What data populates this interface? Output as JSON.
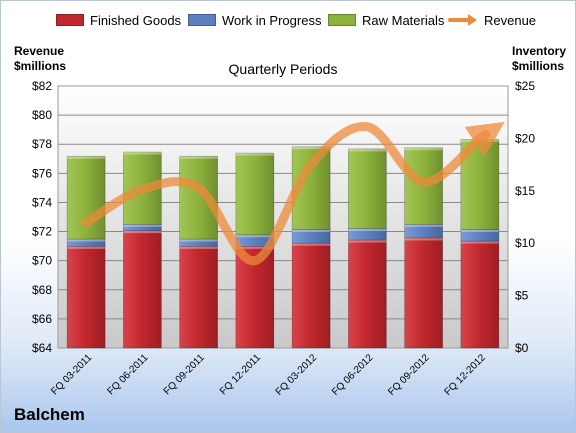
{
  "chart_data": {
    "type": "bar",
    "stacked": true,
    "title": "Quarterly Periods",
    "categories": [
      "FQ 03-2011",
      "FQ 06-2011",
      "FQ 09-2011",
      "FQ 12-2011",
      "FQ 03-2012",
      "FQ 06-2012",
      "FQ 09-2012",
      "FQ 12-2012"
    ],
    "series": [
      {
        "name": "Finished Goods",
        "axis": "right",
        "color": "#c0272d",
        "values": [
          9.7,
          11.2,
          9.7,
          9.7,
          10.0,
          10.3,
          10.5,
          10.2
        ]
      },
      {
        "name": "Work in Progress",
        "axis": "right",
        "color": "#5b7fbf",
        "values": [
          0.7,
          0.6,
          0.7,
          1.1,
          1.3,
          1.1,
          1.3,
          1.1
        ]
      },
      {
        "name": "Raw Materials",
        "axis": "right",
        "color": "#8cb23c",
        "values": [
          7.9,
          6.9,
          7.9,
          7.8,
          7.9,
          7.6,
          7.3,
          8.6
        ]
      }
    ],
    "line_series": {
      "name": "Revenue",
      "axis": "left",
      "color": "#ee8a3a",
      "values": [
        72.6,
        74.9,
        75.0,
        70.0,
        76.6,
        79.2,
        75.4,
        78.4
      ],
      "style": "smoothed"
    },
    "left_axis": {
      "label_lines": [
        "Revenue",
        "$millions"
      ],
      "min": 64,
      "max": 82,
      "step": 2,
      "tick_labels": [
        "$64",
        "$66",
        "$68",
        "$70",
        "$72",
        "$74",
        "$76",
        "$78",
        "$80",
        "$82"
      ]
    },
    "right_axis": {
      "label_lines": [
        "Inventory",
        "$millions"
      ],
      "min": 0,
      "max": 25,
      "step": 5,
      "tick_labels": [
        "$0",
        "$5",
        "$10",
        "$15",
        "$20",
        "$25"
      ]
    },
    "grid": true,
    "legend_position": "top"
  },
  "brand": "Balchem"
}
